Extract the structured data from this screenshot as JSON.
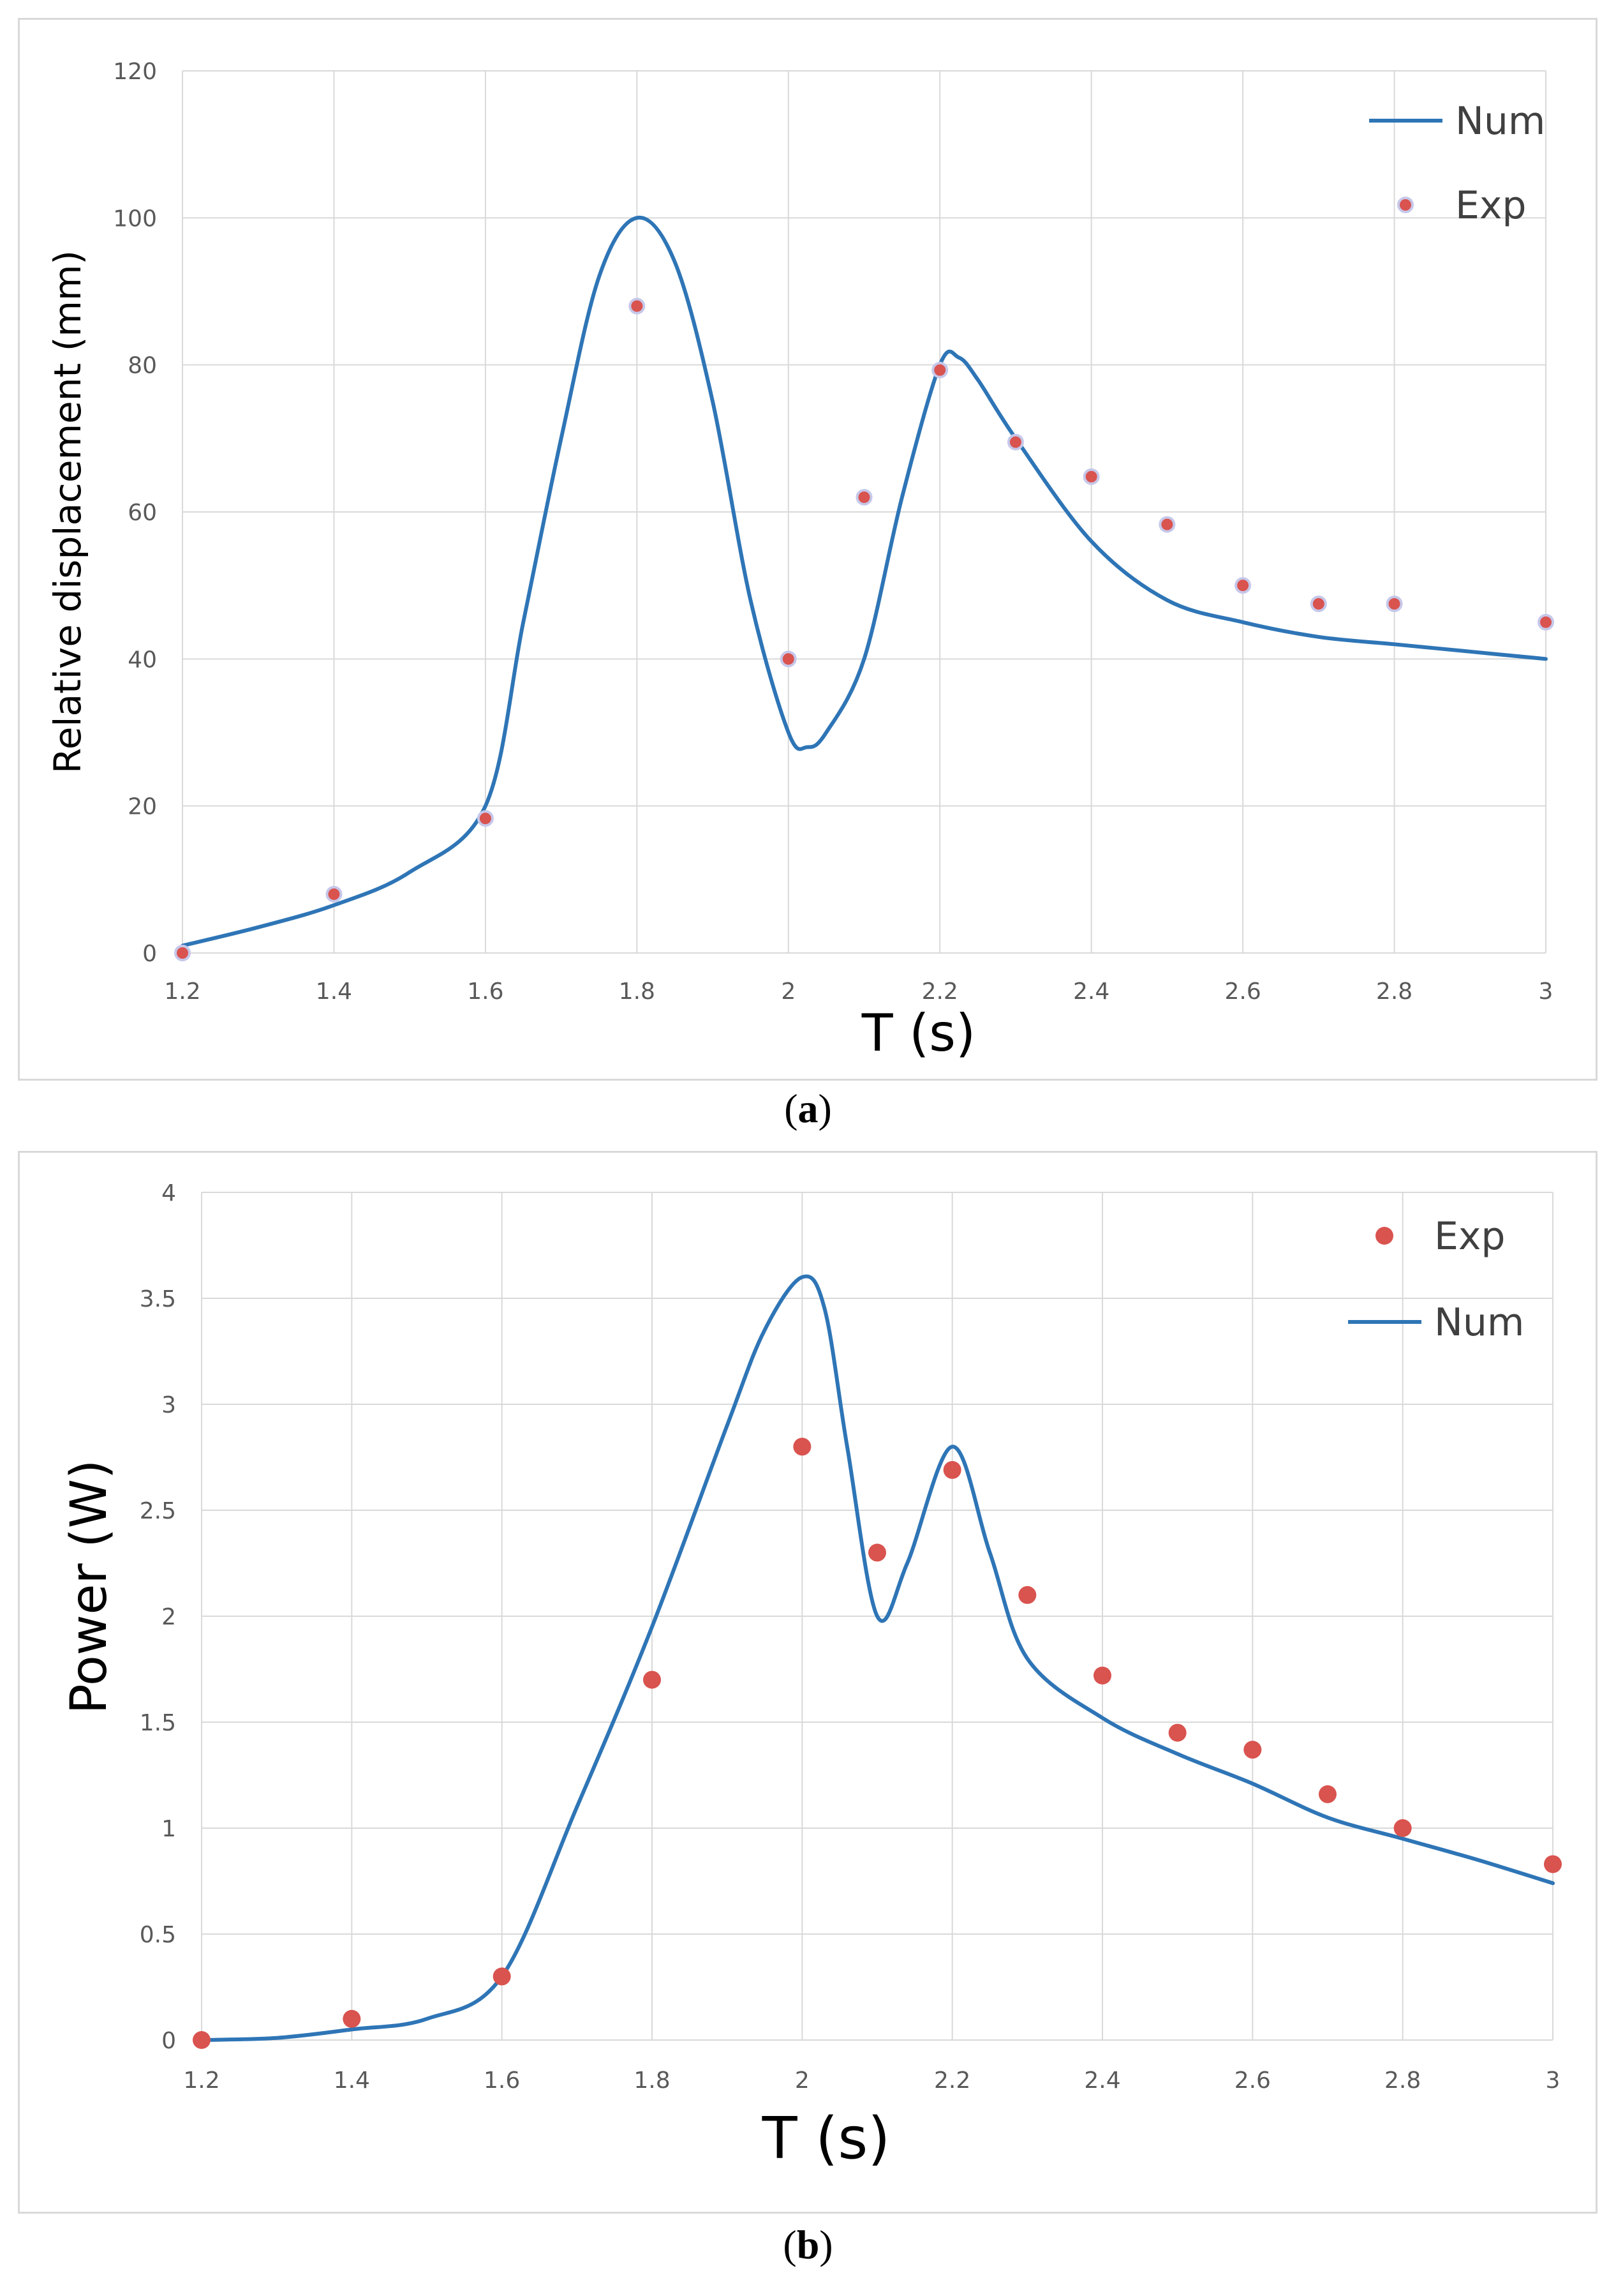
{
  "chart_data": [
    {
      "type": "line",
      "panel_label": "a",
      "xlabel": "T (s)",
      "ylabel": "Relative displacement (mm)",
      "xlim": [
        1.2,
        3
      ],
      "ylim": [
        0,
        120
      ],
      "x_ticks": [
        "1.2",
        "1.4",
        "1.6",
        "1.8",
        "2",
        "2.2",
        "2.4",
        "2.6",
        "2.8",
        "3"
      ],
      "y_ticks": [
        "0",
        "20",
        "40",
        "60",
        "80",
        "100",
        "120"
      ],
      "grid": true,
      "legend_position": "top-right",
      "legend_order": [
        "Num",
        "Exp"
      ],
      "colors": {
        "num": "#2e75b6",
        "exp": "#d9534f",
        "grid": "#d9d9d9"
      },
      "series": [
        {
          "name": "Num",
          "kind": "line",
          "x": [
            1.2,
            1.3,
            1.4,
            1.5,
            1.6,
            1.65,
            1.7,
            1.75,
            1.8,
            1.85,
            1.9,
            1.95,
            2.0,
            2.025,
            2.05,
            2.1,
            2.15,
            2.2,
            2.225,
            2.25,
            2.3,
            2.4,
            2.5,
            2.6,
            2.7,
            2.8,
            2.9,
            3.0
          ],
          "y": [
            1,
            3.5,
            6.5,
            11,
            20,
            45,
            70,
            92,
            100,
            94,
            75,
            48,
            30,
            28,
            30,
            40,
            62,
            80,
            81,
            78,
            70,
            56,
            48,
            45,
            43,
            42,
            41,
            40
          ]
        },
        {
          "name": "Exp",
          "kind": "scatter",
          "x": [
            1.2,
            1.4,
            1.6,
            1.8,
            2.0,
            2.1,
            2.2,
            2.3,
            2.4,
            2.5,
            2.6,
            2.7,
            2.8,
            3.0
          ],
          "y": [
            0,
            8,
            18.3,
            88,
            40,
            62,
            79.3,
            69.5,
            64.8,
            58.3,
            50,
            47.5,
            47.5,
            45
          ]
        }
      ]
    },
    {
      "type": "line",
      "panel_label": "b",
      "xlabel": "T (s)",
      "ylabel": "Power (W)",
      "xlim": [
        1.2,
        3
      ],
      "ylim": [
        0,
        4
      ],
      "x_ticks": [
        "1.2",
        "1.4",
        "1.6",
        "1.8",
        "2",
        "2.2",
        "2.4",
        "2.6",
        "2.8",
        "3"
      ],
      "y_ticks": [
        "0",
        "0.5",
        "1",
        "1.5",
        "2",
        "2.5",
        "3",
        "3.5",
        "4"
      ],
      "grid": true,
      "legend_position": "top-right",
      "legend_order": [
        "Exp",
        "Num"
      ],
      "colors": {
        "num": "#2e75b6",
        "exp": "#d9534f",
        "grid": "#d9d9d9"
      },
      "series": [
        {
          "name": "Exp",
          "kind": "scatter",
          "x": [
            1.2,
            1.4,
            1.6,
            1.8,
            2.0,
            2.1,
            2.2,
            2.3,
            2.4,
            2.5,
            2.6,
            2.7,
            2.8,
            3.0
          ],
          "y": [
            0,
            0.1,
            0.3,
            1.7,
            2.8,
            2.3,
            2.69,
            2.1,
            1.72,
            1.45,
            1.37,
            1.16,
            1.0,
            0.83
          ]
        },
        {
          "name": "Num",
          "kind": "line",
          "x": [
            1.2,
            1.3,
            1.4,
            1.5,
            1.6,
            1.7,
            1.8,
            1.9,
            1.95,
            2.0,
            2.03,
            2.06,
            2.1,
            2.14,
            2.2,
            2.25,
            2.3,
            2.4,
            2.5,
            2.6,
            2.7,
            2.8,
            2.9,
            3.0
          ],
          "y": [
            0,
            0.01,
            0.05,
            0.1,
            0.3,
            1.1,
            1.95,
            2.9,
            3.35,
            3.6,
            3.45,
            2.8,
            2.0,
            2.25,
            2.8,
            2.3,
            1.8,
            1.52,
            1.35,
            1.21,
            1.05,
            0.95,
            0.85,
            0.74
          ]
        }
      ]
    }
  ]
}
